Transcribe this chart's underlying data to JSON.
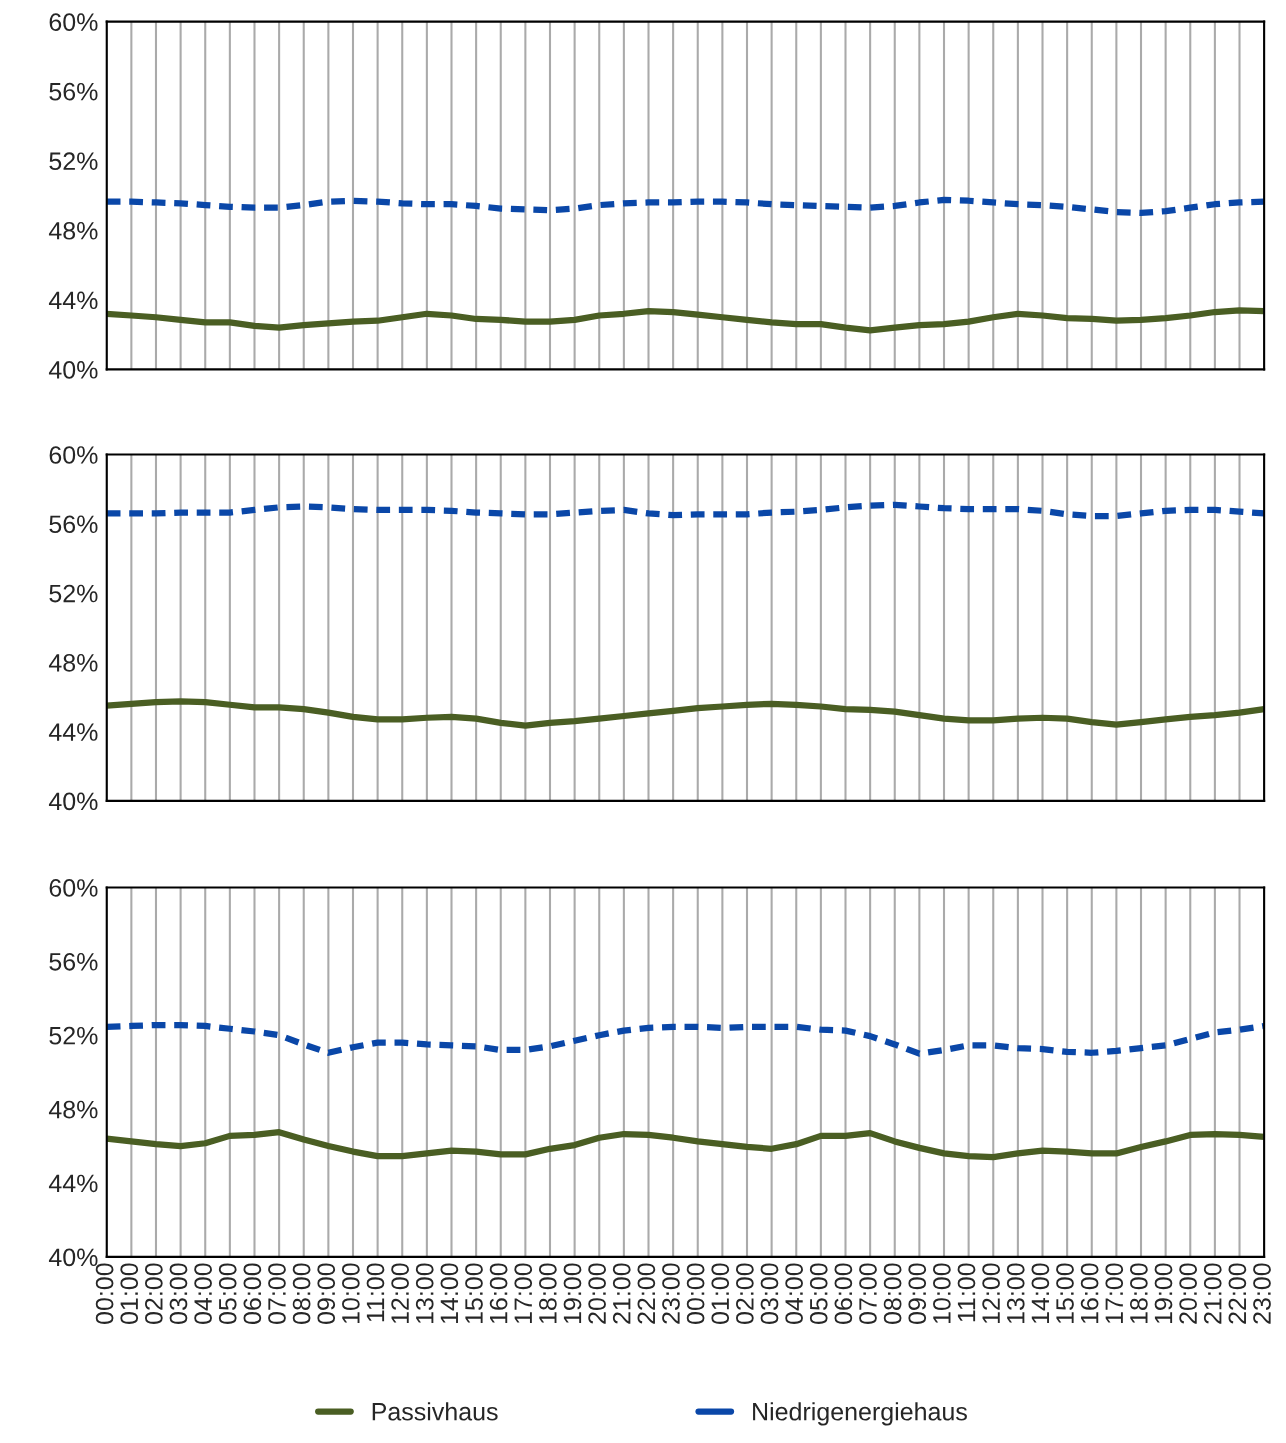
{
  "chart_data": [
    {
      "type": "line",
      "categories": [
        null,
        null,
        null,
        null,
        null,
        null,
        null,
        null,
        null,
        null,
        null,
        null,
        null,
        null,
        null,
        null,
        null,
        null,
        null,
        null,
        null,
        null,
        null,
        null,
        null,
        null,
        null,
        null,
        null,
        null,
        null,
        null,
        null,
        null,
        null,
        null,
        null,
        null,
        null,
        null,
        null,
        null,
        null,
        null,
        null,
        null,
        null,
        null
      ],
      "series": [
        {
          "name": "Passivhaus",
          "color": "#4a5e23",
          "line_style": "solid",
          "values": [
            43.2,
            43.1,
            43.0,
            42.85,
            42.7,
            42.7,
            42.5,
            42.4,
            42.55,
            42.65,
            42.75,
            42.8,
            43.0,
            43.2,
            43.1,
            42.9,
            42.85,
            42.75,
            42.75,
            42.85,
            43.1,
            43.2,
            43.35,
            43.3,
            43.15,
            43.0,
            42.85,
            42.7,
            42.6,
            42.6,
            42.4,
            42.25,
            42.4,
            42.55,
            42.6,
            42.75,
            43.0,
            43.2,
            43.1,
            42.95,
            42.9,
            42.8,
            42.85,
            42.95,
            43.1,
            43.3,
            43.4,
            43.35
          ]
        },
        {
          "name": "Niedrigenergiehaus",
          "color": "#0a47a8",
          "line_style": "dashed",
          "values": [
            49.65,
            49.65,
            49.6,
            49.55,
            49.45,
            49.35,
            49.3,
            49.3,
            49.45,
            49.65,
            49.7,
            49.65,
            49.55,
            49.5,
            49.5,
            49.4,
            49.25,
            49.2,
            49.15,
            49.25,
            49.45,
            49.55,
            49.6,
            49.6,
            49.65,
            49.65,
            49.6,
            49.5,
            49.45,
            49.4,
            49.35,
            49.3,
            49.4,
            49.6,
            49.75,
            49.7,
            49.6,
            49.5,
            49.45,
            49.35,
            49.2,
            49.05,
            49.0,
            49.1,
            49.3,
            49.5,
            49.6,
            49.65
          ]
        }
      ],
      "ylim": [
        40,
        60
      ],
      "yticks": [
        {
          "value": 40,
          "label": "40%"
        },
        {
          "value": 44,
          "label": "44%"
        },
        {
          "value": 48,
          "label": "48%"
        },
        {
          "value": 52,
          "label": "52%"
        },
        {
          "value": 56,
          "label": "56%"
        },
        {
          "value": 60,
          "label": "60%"
        }
      ],
      "grid": "x",
      "legend": "bottom"
    },
    {
      "type": "line",
      "categories": [
        null,
        null,
        null,
        null,
        null,
        null,
        null,
        null,
        null,
        null,
        null,
        null,
        null,
        null,
        null,
        null,
        null,
        null,
        null,
        null,
        null,
        null,
        null,
        null,
        null,
        null,
        null,
        null,
        null,
        null,
        null,
        null,
        null,
        null,
        null,
        null,
        null,
        null,
        null,
        null,
        null,
        null,
        null,
        null,
        null,
        null,
        null,
        null
      ],
      "series": [
        {
          "color": "#4a5e23",
          "line_style": "solid",
          "values": [
            45.5,
            45.6,
            45.7,
            45.75,
            45.7,
            45.55,
            45.4,
            45.4,
            45.3,
            45.1,
            44.85,
            44.7,
            44.7,
            44.8,
            44.85,
            44.75,
            44.5,
            44.35,
            44.5,
            44.6,
            44.75,
            44.9,
            45.05,
            45.2,
            45.35,
            45.45,
            45.55,
            45.6,
            45.55,
            45.45,
            45.3,
            45.25,
            45.15,
            44.95,
            44.75,
            44.65,
            44.65,
            44.75,
            44.8,
            44.75,
            44.55,
            44.4,
            44.55,
            44.7,
            44.85,
            44.95,
            45.1,
            45.3
          ]
        },
        {
          "color": "#0a47a8",
          "line_style": "dashed",
          "values": [
            56.6,
            56.6,
            56.6,
            56.65,
            56.65,
            56.65,
            56.8,
            56.95,
            57.0,
            56.95,
            56.85,
            56.8,
            56.8,
            56.8,
            56.75,
            56.65,
            56.6,
            56.55,
            56.55,
            56.65,
            56.75,
            56.8,
            56.6,
            56.5,
            56.55,
            56.55,
            56.55,
            56.65,
            56.7,
            56.8,
            56.95,
            57.05,
            57.1,
            57.0,
            56.9,
            56.85,
            56.85,
            56.85,
            56.75,
            56.55,
            56.45,
            56.45,
            56.6,
            56.75,
            56.8,
            56.8,
            56.7,
            56.6
          ]
        }
      ],
      "ylim": [
        40,
        60
      ],
      "yticks": [
        {
          "value": 40,
          "label": "40%"
        },
        {
          "value": 44,
          "label": "44%"
        },
        {
          "value": 48,
          "label": "48%"
        },
        {
          "value": 52,
          "label": "52%"
        },
        {
          "value": 56,
          "label": "56%"
        },
        {
          "value": 60,
          "label": "60%"
        }
      ],
      "grid": "x"
    },
    {
      "type": "line",
      "categories": [
        "00:00",
        "01:00",
        "02:00",
        "03:00",
        "04:00",
        "05:00",
        "06:00",
        "07:00",
        "08:00",
        "09:00",
        "10:00",
        "11:00",
        "12:00",
        "13:00",
        "14:00",
        "15:00",
        "16:00",
        "17:00",
        "18:00",
        "19:00",
        "20:00",
        "21:00",
        "22:00",
        "23:00",
        "00:00",
        "01:00",
        "02:00",
        "03:00",
        "04:00",
        "05:00",
        "06:00",
        "07:00",
        "08:00",
        "09:00",
        "10:00",
        "11:00",
        "12:00",
        "13:00",
        "14:00",
        "15:00",
        "16:00",
        "17:00",
        "18:00",
        "19:00",
        "20:00",
        "21:00",
        "22:00",
        "23:00"
      ],
      "series": [
        {
          "color": "#4a5e23",
          "line_style": "solid",
          "values": [
            46.4,
            46.25,
            46.1,
            46.0,
            46.15,
            46.55,
            46.6,
            46.75,
            46.35,
            46.0,
            45.7,
            45.45,
            45.45,
            45.6,
            45.75,
            45.7,
            45.55,
            45.55,
            45.85,
            46.05,
            46.45,
            46.65,
            46.6,
            46.45,
            46.25,
            46.1,
            45.95,
            45.85,
            46.1,
            46.55,
            46.55,
            46.7,
            46.25,
            45.9,
            45.6,
            45.45,
            45.4,
            45.6,
            45.75,
            45.7,
            45.6,
            45.6,
            45.95,
            46.25,
            46.6,
            46.65,
            46.6,
            46.5
          ]
        },
        {
          "color": "#0a47a8",
          "line_style": "dashed",
          "values": [
            52.45,
            52.5,
            52.55,
            52.55,
            52.5,
            52.35,
            52.2,
            52.0,
            51.5,
            51.05,
            51.35,
            51.6,
            51.6,
            51.5,
            51.45,
            51.4,
            51.2,
            51.2,
            51.4,
            51.7,
            52.0,
            52.25,
            52.4,
            52.45,
            52.45,
            52.4,
            52.45,
            52.45,
            52.45,
            52.3,
            52.25,
            51.95,
            51.5,
            51.0,
            51.2,
            51.45,
            51.45,
            51.3,
            51.25,
            51.1,
            51.05,
            51.15,
            51.3,
            51.45,
            51.8,
            52.15,
            52.3,
            52.5
          ]
        }
      ],
      "ylim": [
        40,
        60
      ],
      "yticks": [
        {
          "value": 40,
          "label": "40%"
        },
        {
          "value": 44,
          "label": "44%"
        },
        {
          "value": 48,
          "label": "48%"
        },
        {
          "value": 52,
          "label": "52%"
        },
        {
          "value": 56,
          "label": "56%"
        },
        {
          "value": 60,
          "label": "60%"
        }
      ],
      "grid": "x"
    }
  ]
}
